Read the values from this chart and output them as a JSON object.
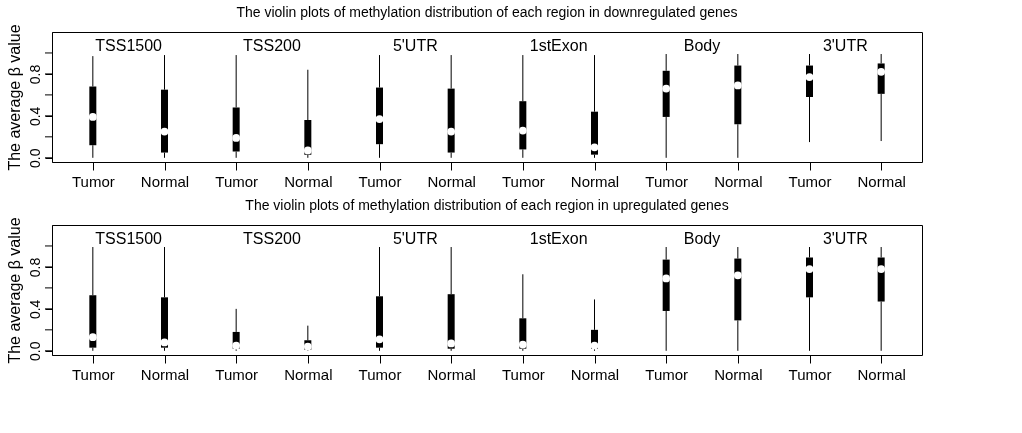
{
  "chart_data": [
    {
      "type": "box",
      "title": "The violin plots of methylation distribution of each region in downregulated genes",
      "ylabel": "The average β value",
      "categories": [
        "Tumor",
        "Normal",
        "Tumor",
        "Normal",
        "Tumor",
        "Normal",
        "Tumor",
        "Normal",
        "Tumor",
        "Normal",
        "Tumor",
        "Normal"
      ],
      "annotations": [
        "TSS1500",
        "TSS200",
        "5'UTR",
        "1stExon",
        "Body",
        "3'UTR"
      ],
      "ylim": [
        -0.04,
        1.2
      ],
      "yticks": [
        {
          "value": 0,
          "label": "0.0"
        },
        {
          "value": 0.2,
          "label": null
        },
        {
          "value": 0.4,
          "label": "0.4"
        },
        {
          "value": 0.6,
          "label": null
        },
        {
          "value": 0.8,
          "label": "0.8"
        },
        {
          "value": 1.0,
          "label": null
        }
      ],
      "boxes": [
        {
          "low": 0.0,
          "q1": 0.12,
          "median": 0.39,
          "q3": 0.68,
          "high": 0.97
        },
        {
          "low": 0.0,
          "q1": 0.05,
          "median": 0.25,
          "q3": 0.65,
          "high": 0.98
        },
        {
          "low": 0.0,
          "q1": 0.06,
          "median": 0.19,
          "q3": 0.48,
          "high": 0.98
        },
        {
          "low": 0.0,
          "q1": 0.03,
          "median": 0.07,
          "q3": 0.36,
          "high": 0.84
        },
        {
          "low": 0.0,
          "q1": 0.13,
          "median": 0.37,
          "q3": 0.67,
          "high": 0.98
        },
        {
          "low": 0.0,
          "q1": 0.05,
          "median": 0.25,
          "q3": 0.66,
          "high": 0.98
        },
        {
          "low": 0.0,
          "q1": 0.08,
          "median": 0.26,
          "q3": 0.54,
          "high": 0.98
        },
        {
          "low": 0.0,
          "q1": 0.03,
          "median": 0.1,
          "q3": 0.44,
          "high": 0.98
        },
        {
          "low": 0.0,
          "q1": 0.39,
          "median": 0.66,
          "q3": 0.83,
          "high": 0.99
        },
        {
          "low": 0.0,
          "q1": 0.32,
          "median": 0.69,
          "q3": 0.88,
          "high": 0.99
        },
        {
          "low": 0.15,
          "q1": 0.58,
          "median": 0.77,
          "q3": 0.88,
          "high": 0.99
        },
        {
          "low": 0.16,
          "q1": 0.61,
          "median": 0.82,
          "q3": 0.9,
          "high": 0.99
        }
      ]
    },
    {
      "type": "box",
      "title": "The violin plots of methylation distribution of each region in upregulated genes",
      "ylabel": "The average β value",
      "categories": [
        "Tumor",
        "Normal",
        "Tumor",
        "Normal",
        "Tumor",
        "Normal",
        "Tumor",
        "Normal",
        "Tumor",
        "Normal",
        "Tumor",
        "Normal"
      ],
      "annotations": [
        "TSS1500",
        "TSS200",
        "5'UTR",
        "1stExon",
        "Body",
        "3'UTR"
      ],
      "ylim": [
        -0.04,
        1.2
      ],
      "yticks": [
        {
          "value": 0,
          "label": "0.0"
        },
        {
          "value": 0.2,
          "label": null
        },
        {
          "value": 0.4,
          "label": "0.4"
        },
        {
          "value": 0.6,
          "label": null
        },
        {
          "value": 0.8,
          "label": "0.8"
        },
        {
          "value": 1.0,
          "label": null
        }
      ],
      "boxes": [
        {
          "low": 0.0,
          "q1": 0.03,
          "median": 0.13,
          "q3": 0.53,
          "high": 0.99
        },
        {
          "low": 0.0,
          "q1": 0.03,
          "median": 0.08,
          "q3": 0.51,
          "high": 0.99
        },
        {
          "low": 0.0,
          "q1": 0.02,
          "median": 0.05,
          "q3": 0.18,
          "high": 0.4
        },
        {
          "low": 0.0,
          "q1": 0.01,
          "median": 0.04,
          "q3": 0.1,
          "high": 0.24
        },
        {
          "low": 0.0,
          "q1": 0.03,
          "median": 0.11,
          "q3": 0.52,
          "high": 0.99
        },
        {
          "low": 0.0,
          "q1": 0.02,
          "median": 0.07,
          "q3": 0.54,
          "high": 0.99
        },
        {
          "low": 0.0,
          "q1": 0.02,
          "median": 0.06,
          "q3": 0.31,
          "high": 0.73
        },
        {
          "low": 0.0,
          "q1": 0.02,
          "median": 0.05,
          "q3": 0.2,
          "high": 0.49
        },
        {
          "low": 0.0,
          "q1": 0.38,
          "median": 0.69,
          "q3": 0.87,
          "high": 0.99
        },
        {
          "low": 0.0,
          "q1": 0.29,
          "median": 0.72,
          "q3": 0.88,
          "high": 0.99
        },
        {
          "low": 0.0,
          "q1": 0.51,
          "median": 0.78,
          "q3": 0.89,
          "high": 0.99
        },
        {
          "low": 0.0,
          "q1": 0.47,
          "median": 0.78,
          "q3": 0.89,
          "high": 0.99
        }
      ]
    }
  ]
}
